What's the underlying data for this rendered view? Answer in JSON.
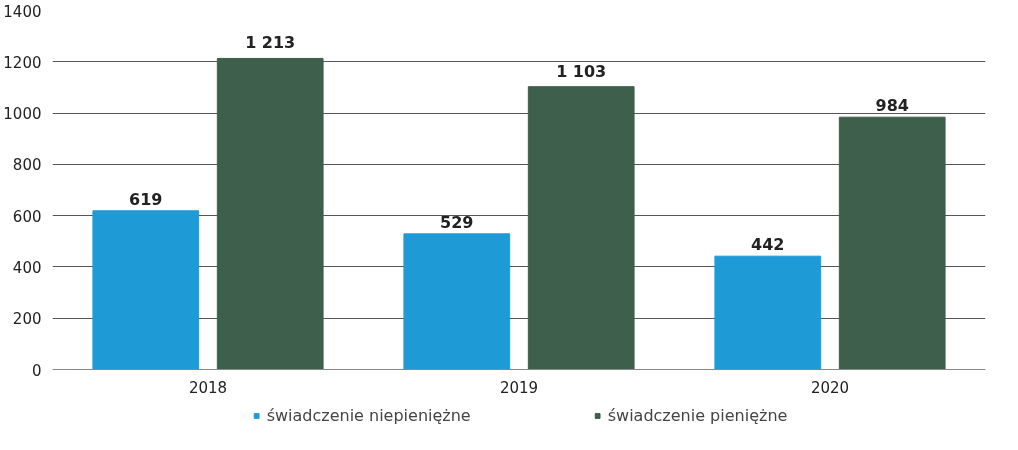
{
  "chart_data": {
    "type": "bar",
    "categories": [
      "2018",
      "2019",
      "2020"
    ],
    "series": [
      {
        "name": "świadczenie niepieniężne",
        "color": "#1e9bd7",
        "values": [
          619,
          529,
          442
        ],
        "value_labels": [
          "619",
          "529",
          "442"
        ]
      },
      {
        "name": "świadczenie pieniężne",
        "color": "#3e5f4c",
        "values": [
          1213,
          1103,
          984
        ],
        "value_labels": [
          "1 213",
          "1 103",
          "984"
        ]
      }
    ],
    "ylim": [
      0,
      1400
    ],
    "yticks": [
      0,
      200,
      400,
      600,
      800,
      1000,
      1200,
      1400
    ],
    "grid": "y",
    "legend": "bottom"
  }
}
